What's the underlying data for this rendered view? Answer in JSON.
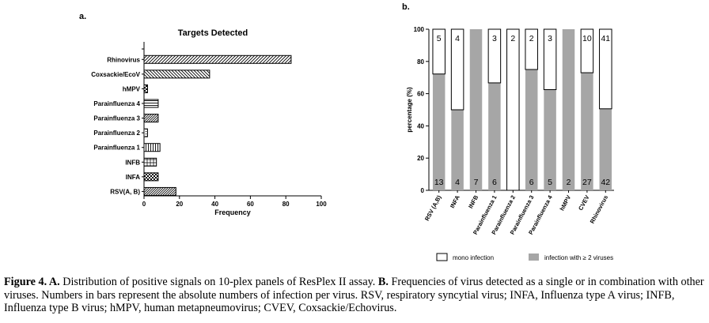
{
  "panel_a": {
    "label": "a."
  },
  "panel_b": {
    "label": "b."
  },
  "caption": {
    "lead": "Figure 4. A.",
    "text_a": " Distribution of positive signals on 10-plex panels of ResPlex II assay. ",
    "b_label": "B.",
    "text_b": " Frequencies of virus detected as a single or in combination with other viruses. Numbers in bars represent the absolute numbers of infection per virus. RSV, respiratory syncytial virus; INFA, Influenza type A virus; INFB, Influenza type B virus; hMPV, human metapneumovirus; CVEV, Coxsackie/Echovirus."
  },
  "chart_data": [
    {
      "type": "bar",
      "orientation": "horizontal",
      "title": "Targets Detected",
      "xlabel": "Frequency",
      "ylabel": "",
      "xlim": [
        0,
        100
      ],
      "xticks": [
        "0",
        "20",
        "40",
        "60",
        "80",
        "100"
      ],
      "categories": [
        "Rhinovirus",
        "Coxsackie/EcoV",
        "hMPV",
        "Parainfluenza 4",
        "Parainfluenza 3",
        "Parainfluenza 2",
        "Parainfluenza 1",
        "INFB",
        "INFA",
        "RSV(A, B)"
      ],
      "values": [
        83,
        37,
        2,
        8,
        8,
        2,
        9,
        7,
        8,
        18
      ]
    },
    {
      "type": "bar",
      "orientation": "vertical",
      "stacked": true,
      "percent": true,
      "ylabel": "percentage (%)",
      "ylim": [
        0,
        100
      ],
      "yticks": [
        "0",
        "20",
        "40",
        "60",
        "80",
        "100"
      ],
      "categories": [
        "RSV (A,B)",
        "INFA",
        "INFB",
        "Parainfluenza 1",
        "Parainfluenza 2",
        "Parainfluenza 3",
        "Parainfluenza 4",
        "hMPV",
        "CVEV",
        "Rhinovirus"
      ],
      "series": [
        {
          "name": "infection with ≥ 2 viruses",
          "color": "#a6a6a6",
          "counts": [
            "13",
            "4",
            "7",
            "6",
            "",
            "6",
            "5",
            "2",
            "27",
            "42"
          ],
          "percent": [
            72.2,
            50,
            100,
            66.7,
            0,
            75,
            62.5,
            100,
            73,
            50.6
          ]
        },
        {
          "name": "mono infection",
          "color": "#ffffff",
          "counts": [
            "5",
            "4",
            "",
            "3",
            "2",
            "2",
            "3",
            "",
            "10",
            "41"
          ],
          "percent": [
            27.8,
            50,
            0,
            33.3,
            100,
            25,
            37.5,
            0,
            27,
            49.4
          ]
        }
      ],
      "legend": "bottom"
    }
  ]
}
